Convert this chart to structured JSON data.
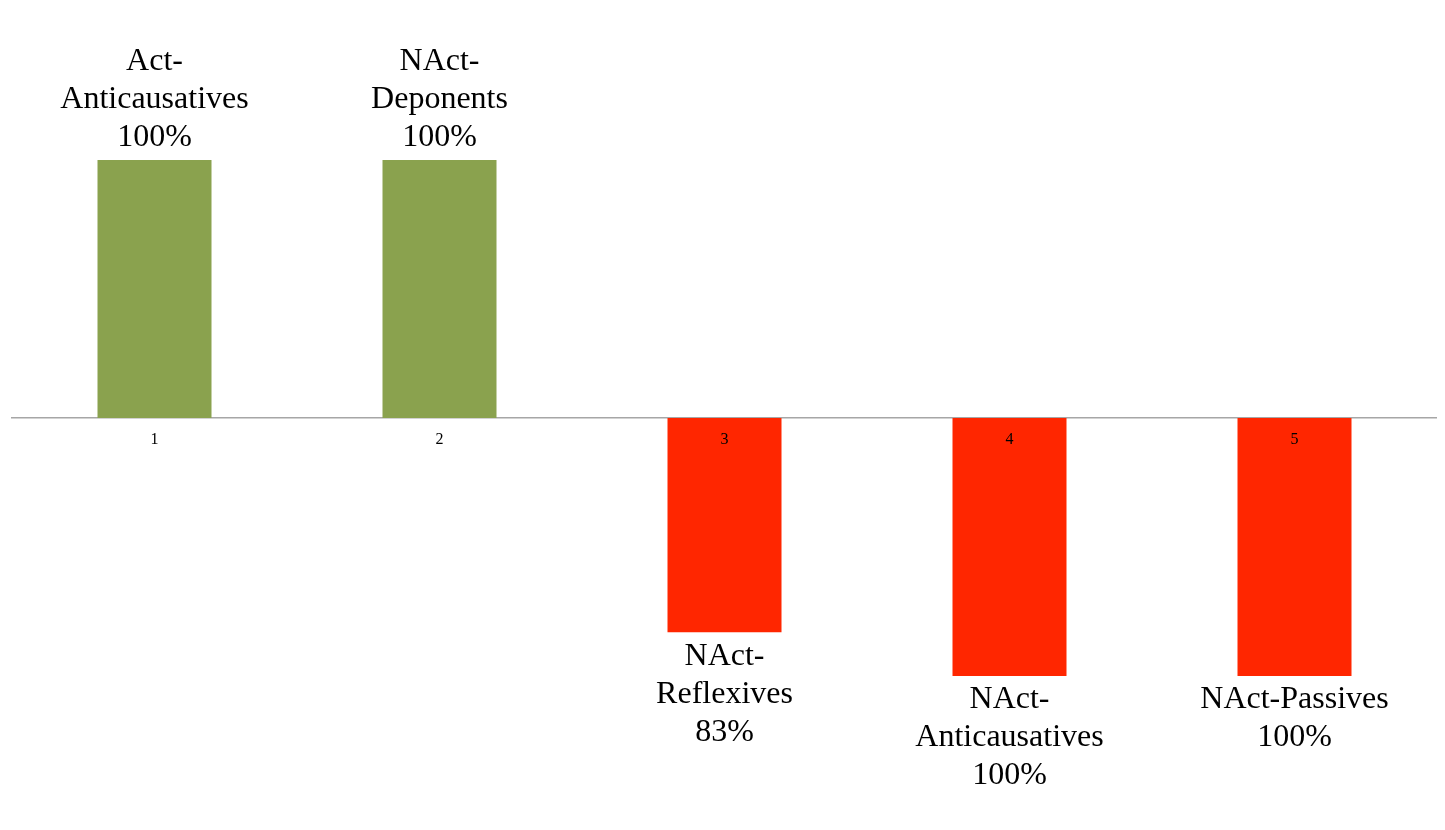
{
  "chart_data": {
    "type": "bar",
    "categories": [
      "1",
      "2",
      "3",
      "4",
      "5"
    ],
    "values": [
      100,
      100,
      -83,
      -100,
      -100
    ],
    "colors": [
      "#8aa24e",
      "#8aa24e",
      "#ff2600",
      "#ff2600",
      "#ff2600"
    ],
    "value_labels": [
      "Act-\nAnticausatives\n100%",
      "NAct-\nDeponents\n100%",
      "NAct-\nReflexives\n83%",
      "NAct-\nAnticausatives\n100%",
      "NAct-Passives\n100%"
    ],
    "grid": false,
    "legend": false
  }
}
